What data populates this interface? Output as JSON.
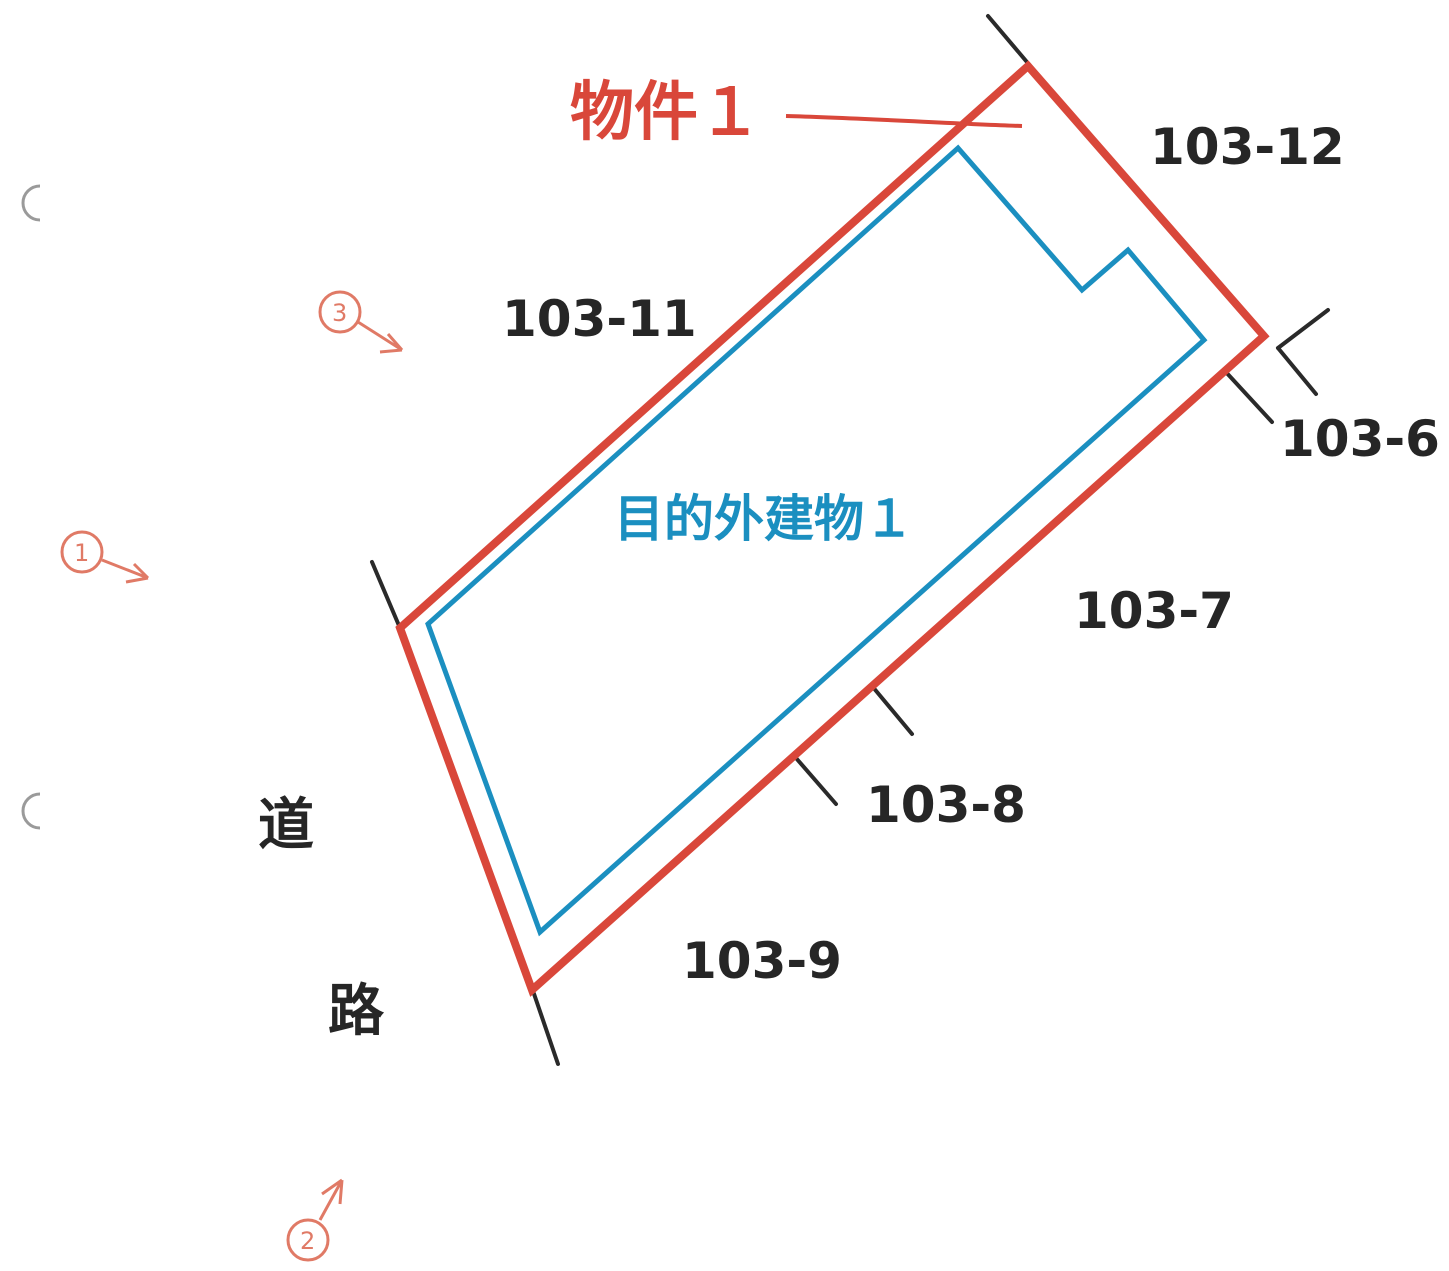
{
  "colors": {
    "property": "#d9473a",
    "building": "#1b8fc0",
    "boundary": "#2a2a2a",
    "marker": "#e07a66",
    "text": "#262626"
  },
  "property": {
    "label": "物件１"
  },
  "building": {
    "label": "目的外建物１"
  },
  "road": {
    "char1": "道",
    "char2": "路"
  },
  "lots": {
    "l103_12": "103-12",
    "l103_11": "103-11",
    "l103_6": "103-6",
    "l103_7": "103-7",
    "l103_8": "103-8",
    "l103_9": "103-9"
  },
  "markers": {
    "m1": "1",
    "m2": "2",
    "m3": "3"
  }
}
